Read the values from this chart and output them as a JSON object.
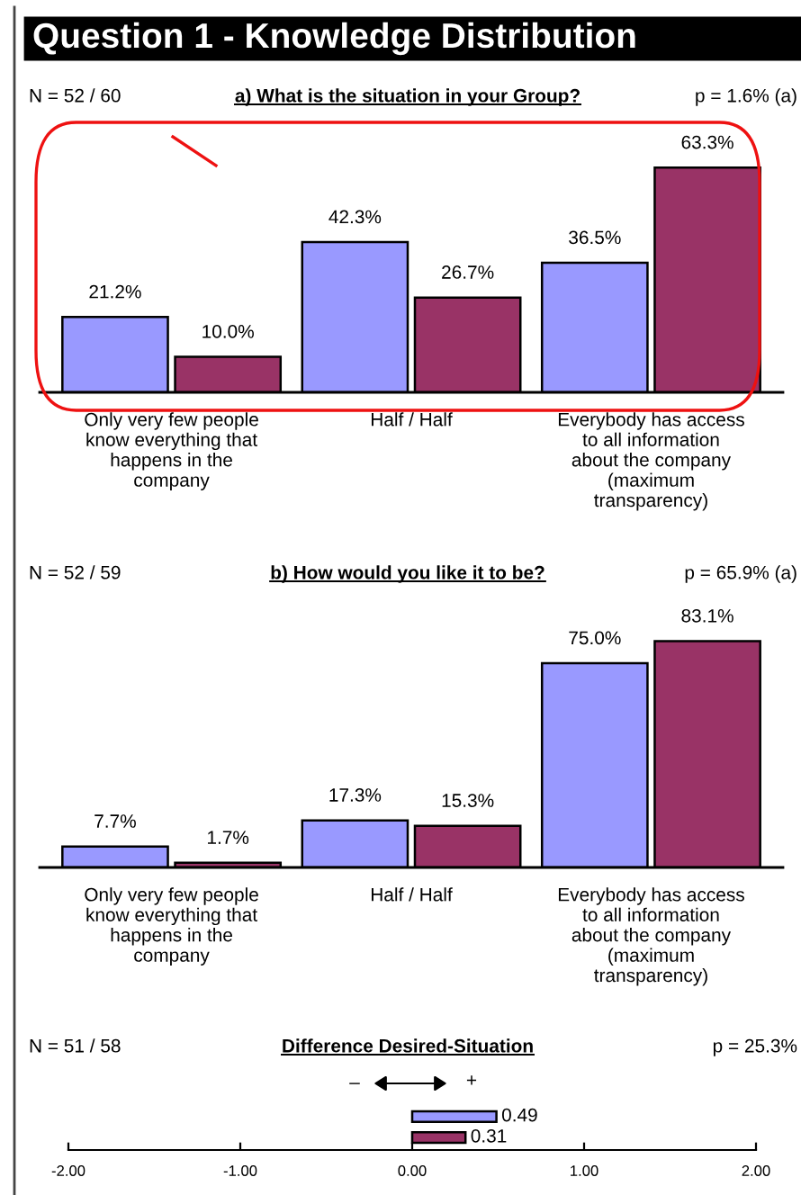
{
  "chart_data": [
    {
      "type": "bar",
      "title": "Question 1 - Knowledge Distribution",
      "subtitle": "a) What is the situation in your Group?",
      "annotations": [
        "N = 52 / 60",
        "p = 1.6% (a)"
      ],
      "categories": [
        "Only very few people\nknow everything that\nhappens in the\ncompany",
        "Half / Half",
        "Everybody has access\nto all information\nabout the company\n(maximum\ntransparency)"
      ],
      "series": [
        {
          "color": "#9999ff",
          "values": [
            21.2,
            42.3,
            36.5
          ],
          "value_labels": [
            "21.2%",
            "42.3%",
            "36.5%"
          ]
        },
        {
          "color": "#993366",
          "values": [
            10.0,
            26.7,
            63.3
          ],
          "value_labels": [
            "10.0%",
            "26.7%",
            "63.3%"
          ]
        }
      ]
    },
    {
      "type": "bar",
      "title": "b) How would you like it to be?",
      "annotations": [
        "N = 52 / 59",
        "p = 65.9% (a)"
      ],
      "categories": [
        "Only very few people\nknow everything that\nhappens in the\ncompany",
        "Half / Half",
        "Everybody has access\nto all information\nabout the company\n(maximum\ntransparency)"
      ],
      "series": [
        {
          "color": "#9999ff",
          "values": [
            7.7,
            17.3,
            75.0
          ],
          "value_labels": [
            "7.7%",
            "17.3%",
            "75.0%"
          ]
        },
        {
          "color": "#993366",
          "values": [
            1.7,
            15.3,
            83.1
          ],
          "value_labels": [
            "1.7%",
            "15.3%",
            "83.1%"
          ]
        }
      ]
    },
    {
      "type": "bar",
      "orientation": "horizontal",
      "title": "Difference Desired-Situation",
      "annotations": [
        "N = 51 / 58",
        "p = 25.3%",
        "–",
        "+"
      ],
      "categories": [
        null,
        null
      ],
      "colors": [
        "#9999ff",
        "#993366"
      ],
      "values": [
        0.49,
        0.31
      ],
      "data_labels": true,
      "xlim": [
        -2,
        2
      ],
      "xticks": [
        {
          "value": -2,
          "label": "-2.00"
        },
        {
          "value": -1,
          "label": "-1.00"
        },
        {
          "value": 0,
          "label": "0.00"
        },
        {
          "value": 1,
          "label": "1.00"
        },
        {
          "value": 2,
          "label": "2.00"
        }
      ]
    }
  ]
}
